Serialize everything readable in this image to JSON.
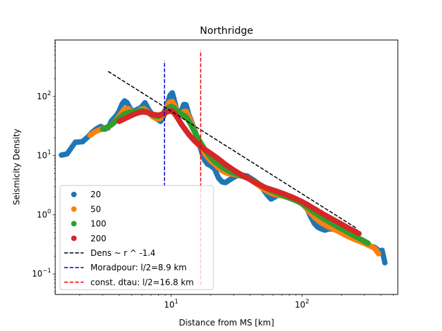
{
  "chart_data": {
    "type": "scatter",
    "title": "Northridge",
    "xlabel": "Distance from MS [km]",
    "ylabel": "Seismicity Density",
    "xscale": "log",
    "yscale": "log",
    "xlim": [
      1.3,
      540
    ],
    "ylim": [
      0.045,
      900
    ],
    "xticks": [
      {
        "value": 10,
        "base": "10",
        "exp": "1"
      },
      {
        "value": 100,
        "base": "10",
        "exp": "2"
      }
    ],
    "yticks": [
      {
        "value": 0.1,
        "base": "10",
        "exp": "−1"
      },
      {
        "value": 1,
        "base": "10",
        "exp": "0"
      },
      {
        "value": 10,
        "base": "10",
        "exp": "1"
      },
      {
        "value": 100,
        "base": "10",
        "exp": "2"
      }
    ],
    "grid": false,
    "legend_position": "lower-left",
    "series": [
      {
        "name": "20",
        "color": "#1f77b4",
        "points": [
          [
            1.45,
            10.2
          ],
          [
            1.6,
            10.7
          ],
          [
            1.85,
            16.8
          ],
          [
            2.1,
            17.2
          ],
          [
            2.3,
            20.5
          ],
          [
            2.5,
            25.0
          ],
          [
            2.7,
            28.5
          ],
          [
            2.9,
            31.0
          ],
          [
            3.1,
            28.0
          ],
          [
            3.3,
            29.5
          ],
          [
            3.5,
            38.5
          ],
          [
            3.8,
            47.0
          ],
          [
            4.0,
            56.0
          ],
          [
            4.2,
            73.0
          ],
          [
            4.4,
            84.0
          ],
          [
            4.6,
            78.0
          ],
          [
            4.9,
            60.0
          ],
          [
            5.2,
            56.0
          ],
          [
            5.5,
            60.0
          ],
          [
            5.9,
            65.0
          ],
          [
            6.3,
            78.0
          ],
          [
            6.8,
            58.0
          ],
          [
            7.3,
            47.0
          ],
          [
            7.8,
            42.0
          ],
          [
            8.3,
            38.0
          ],
          [
            8.8,
            48.0
          ],
          [
            9.3,
            72.0
          ],
          [
            9.8,
            104.0
          ],
          [
            10.2,
            115.0
          ],
          [
            10.6,
            84.0
          ],
          [
            11.0,
            60.0
          ],
          [
            11.5,
            46.0
          ],
          [
            12.0,
            58.0
          ],
          [
            12.5,
            73.0
          ],
          [
            13.0,
            72.0
          ],
          [
            13.6,
            50.0
          ],
          [
            14.2,
            39.0
          ],
          [
            15.0,
            28.0
          ],
          [
            16.0,
            19.0
          ],
          [
            17.0,
            12.0
          ],
          [
            18.0,
            8.4
          ],
          [
            19.0,
            7.2
          ],
          [
            20.0,
            6.8
          ],
          [
            21.5,
            6.0
          ],
          [
            23.0,
            4.2
          ],
          [
            24.5,
            3.6
          ],
          [
            26.0,
            3.5
          ],
          [
            28.0,
            3.9
          ],
          [
            30.0,
            4.3
          ],
          [
            32.0,
            4.6
          ],
          [
            34.0,
            4.7
          ],
          [
            36.0,
            4.6
          ],
          [
            38.0,
            4.5
          ],
          [
            40.0,
            4.2
          ],
          [
            43.0,
            3.8
          ],
          [
            46.0,
            3.4
          ],
          [
            50.0,
            2.8
          ],
          [
            54.0,
            2.2
          ],
          [
            58.0,
            1.85
          ],
          [
            62.0,
            2.0
          ],
          [
            66.0,
            2.2
          ],
          [
            70.0,
            2.25
          ],
          [
            75.0,
            2.1
          ],
          [
            80.0,
            1.95
          ],
          [
            86.0,
            1.85
          ],
          [
            92.0,
            1.75
          ],
          [
            100.0,
            1.65
          ],
          [
            108.0,
            1.35
          ],
          [
            116.0,
            0.95
          ],
          [
            124.0,
            0.72
          ],
          [
            132.0,
            0.62
          ],
          [
            140.0,
            0.58
          ],
          [
            150.0,
            0.55
          ],
          [
            160.0,
            0.58
          ],
          [
            175.0,
            0.57
          ],
          [
            190.0,
            0.54
          ],
          [
            210.0,
            0.5
          ],
          [
            230.0,
            0.44
          ],
          [
            255.0,
            0.4
          ],
          [
            280.0,
            0.36
          ],
          [
            310.0,
            0.32
          ],
          [
            340.0,
            0.29
          ],
          [
            360.0,
            0.28
          ],
          [
            375.0,
            0.26
          ],
          [
            390.0,
            0.24
          ],
          [
            410.0,
            0.25
          ],
          [
            430.0,
            0.155
          ]
        ]
      },
      {
        "name": "50",
        "color": "#ff7f0e",
        "points": [
          [
            2.4,
            22.0
          ],
          [
            2.6,
            25.0
          ],
          [
            2.8,
            27.0
          ],
          [
            3.0,
            28.5
          ],
          [
            3.2,
            29.5
          ],
          [
            3.5,
            33.0
          ],
          [
            3.8,
            40.0
          ],
          [
            4.1,
            50.0
          ],
          [
            4.4,
            62.0
          ],
          [
            4.7,
            62.0
          ],
          [
            5.0,
            55.0
          ],
          [
            5.4,
            55.0
          ],
          [
            5.8,
            60.0
          ],
          [
            6.2,
            62.0
          ],
          [
            6.7,
            54.0
          ],
          [
            7.2,
            46.0
          ],
          [
            7.7,
            42.0
          ],
          [
            8.2,
            42.0
          ],
          [
            8.7,
            50.0
          ],
          [
            9.2,
            66.0
          ],
          [
            9.7,
            80.0
          ],
          [
            10.2,
            82.0
          ],
          [
            10.7,
            68.0
          ],
          [
            11.2,
            54.0
          ],
          [
            11.8,
            50.0
          ],
          [
            12.4,
            55.0
          ],
          [
            13.0,
            56.0
          ],
          [
            13.7,
            45.0
          ],
          [
            14.4,
            34.0
          ],
          [
            15.2,
            25.0
          ],
          [
            16.2,
            18.0
          ],
          [
            17.3,
            13.0
          ],
          [
            18.5,
            10.0
          ],
          [
            20.0,
            8.2
          ],
          [
            21.5,
            7.2
          ],
          [
            23.0,
            6.2
          ],
          [
            25.0,
            5.4
          ],
          [
            27.0,
            5.0
          ],
          [
            29.0,
            4.9
          ],
          [
            31.0,
            4.8
          ],
          [
            33.0,
            4.6
          ],
          [
            36.0,
            4.4
          ],
          [
            39.0,
            4.1
          ],
          [
            42.0,
            3.7
          ],
          [
            46.0,
            3.2
          ],
          [
            50.0,
            2.8
          ],
          [
            55.0,
            2.45
          ],
          [
            60.0,
            2.25
          ],
          [
            65.0,
            2.15
          ],
          [
            70.0,
            2.1
          ],
          [
            76.0,
            2.0
          ],
          [
            82.0,
            1.9
          ],
          [
            90.0,
            1.8
          ],
          [
            98.0,
            1.6
          ],
          [
            106.0,
            1.35
          ],
          [
            115.0,
            1.1
          ],
          [
            125.0,
            0.9
          ],
          [
            135.0,
            0.78
          ],
          [
            146.0,
            0.7
          ],
          [
            158.0,
            0.63
          ],
          [
            172.0,
            0.58
          ],
          [
            188.0,
            0.53
          ],
          [
            205.0,
            0.48
          ],
          [
            225.0,
            0.43
          ],
          [
            248.0,
            0.39
          ],
          [
            272.0,
            0.36
          ],
          [
            300.0,
            0.33
          ],
          [
            330.0,
            0.3
          ],
          [
            360.0,
            0.27
          ],
          [
            385.0,
            0.22
          ]
        ]
      },
      {
        "name": "100",
        "color": "#2ca02c",
        "points": [
          [
            3.0,
            28.0
          ],
          [
            3.3,
            31.0
          ],
          [
            3.6,
            35.0
          ],
          [
            3.9,
            41.0
          ],
          [
            4.2,
            47.0
          ],
          [
            4.5,
            52.0
          ],
          [
            4.8,
            54.0
          ],
          [
            5.2,
            55.0
          ],
          [
            5.6,
            57.0
          ],
          [
            6.0,
            58.0
          ],
          [
            6.5,
            55.0
          ],
          [
            7.0,
            50.0
          ],
          [
            7.5,
            47.0
          ],
          [
            8.0,
            46.0
          ],
          [
            8.5,
            49.0
          ],
          [
            9.0,
            56.0
          ],
          [
            9.5,
            64.0
          ],
          [
            10.0,
            68.0
          ],
          [
            10.5,
            64.0
          ],
          [
            11.0,
            57.0
          ],
          [
            11.6,
            52.0
          ],
          [
            12.2,
            49.0
          ],
          [
            12.9,
            46.0
          ],
          [
            13.6,
            39.0
          ],
          [
            14.4,
            31.0
          ],
          [
            15.3,
            24.0
          ],
          [
            16.3,
            18.5
          ],
          [
            17.4,
            14.5
          ],
          [
            18.6,
            11.5
          ],
          [
            20.0,
            9.4
          ],
          [
            21.5,
            8.0
          ],
          [
            23.2,
            7.0
          ],
          [
            25.0,
            6.2
          ],
          [
            27.0,
            5.6
          ],
          [
            29.0,
            5.2
          ],
          [
            31.5,
            4.9
          ],
          [
            34.0,
            4.6
          ],
          [
            37.0,
            4.3
          ],
          [
            40.0,
            4.0
          ],
          [
            44.0,
            3.6
          ],
          [
            48.0,
            3.2
          ],
          [
            52.0,
            2.9
          ],
          [
            57.0,
            2.6
          ],
          [
            62.0,
            2.4
          ],
          [
            68.0,
            2.2
          ],
          [
            74.0,
            2.05
          ],
          [
            81.0,
            1.9
          ],
          [
            89.0,
            1.75
          ],
          [
            97.0,
            1.6
          ],
          [
            106.0,
            1.42
          ],
          [
            116.0,
            1.22
          ],
          [
            127.0,
            1.05
          ],
          [
            139.0,
            0.92
          ],
          [
            152.0,
            0.82
          ],
          [
            166.0,
            0.73
          ],
          [
            182.0,
            0.65
          ],
          [
            200.0,
            0.58
          ],
          [
            220.0,
            0.52
          ],
          [
            242.0,
            0.46
          ],
          [
            266.0,
            0.41
          ],
          [
            292.0,
            0.37
          ],
          [
            320.0,
            0.33
          ]
        ]
      },
      {
        "name": "200",
        "color": "#d62728",
        "points": [
          [
            4.0,
            38.0
          ],
          [
            4.4,
            42.0
          ],
          [
            4.8,
            46.0
          ],
          [
            5.2,
            50.0
          ],
          [
            5.6,
            53.0
          ],
          [
            6.0,
            55.0
          ],
          [
            6.5,
            54.0
          ],
          [
            7.0,
            51.0
          ],
          [
            7.5,
            49.0
          ],
          [
            8.0,
            48.0
          ],
          [
            8.5,
            50.0
          ],
          [
            9.0,
            53.0
          ],
          [
            9.5,
            56.0
          ],
          [
            10.0,
            57.0
          ],
          [
            10.5,
            53.0
          ],
          [
            11.0,
            46.0
          ],
          [
            11.6,
            38.0
          ],
          [
            12.2,
            32.0
          ],
          [
            12.9,
            27.0
          ],
          [
            13.6,
            23.0
          ],
          [
            14.4,
            20.0
          ],
          [
            15.2,
            17.5
          ],
          [
            16.1,
            15.5
          ],
          [
            17.0,
            14.0
          ],
          [
            18.0,
            12.8
          ],
          [
            19.2,
            11.6
          ],
          [
            20.5,
            10.5
          ],
          [
            22.0,
            9.4
          ],
          [
            23.6,
            8.4
          ],
          [
            25.3,
            7.4
          ],
          [
            27.2,
            6.6
          ],
          [
            29.3,
            5.9
          ],
          [
            31.6,
            5.3
          ],
          [
            34.1,
            4.8
          ],
          [
            36.8,
            4.4
          ],
          [
            39.7,
            4.0
          ],
          [
            42.9,
            3.6
          ],
          [
            46.4,
            3.3
          ],
          [
            50.2,
            3.0
          ],
          [
            54.3,
            2.8
          ],
          [
            58.8,
            2.65
          ],
          [
            63.7,
            2.5
          ],
          [
            69.0,
            2.35
          ],
          [
            74.8,
            2.2
          ],
          [
            81.1,
            2.05
          ],
          [
            87.9,
            1.9
          ],
          [
            95.3,
            1.75
          ],
          [
            103.3,
            1.6
          ],
          [
            112.0,
            1.45
          ],
          [
            121.4,
            1.3
          ],
          [
            131.6,
            1.17
          ],
          [
            142.7,
            1.05
          ],
          [
            154.7,
            0.95
          ],
          [
            167.7,
            0.86
          ],
          [
            181.8,
            0.78
          ],
          [
            197.1,
            0.71
          ],
          [
            213.7,
            0.64
          ],
          [
            231.7,
            0.58
          ],
          [
            251.2,
            0.53
          ],
          [
            272.3,
            0.48
          ]
        ]
      }
    ],
    "lines": [
      {
        "name": "Dens ~ r ^ -1.4",
        "color": "#000000",
        "type": "powerlaw",
        "x": [
          3.3,
          265
        ],
        "y": [
          265,
          0.58
        ]
      },
      {
        "name": "Moradpour: l/2=8.9 km",
        "color": "#0000cc",
        "type": "vline",
        "x": 8.9,
        "y": [
          3.0,
          400
        ]
      },
      {
        "name": "const. dtau: l/2=16.8 km",
        "color": "#ee0000",
        "type": "vline",
        "x": 16.8,
        "y": [
          0.065,
          600
        ]
      }
    ]
  }
}
